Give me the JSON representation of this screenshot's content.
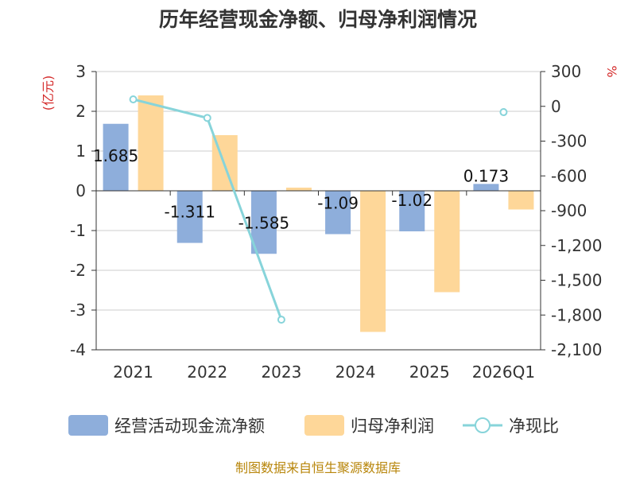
{
  "chart_data": {
    "type": "bar",
    "title": "历年经营现金净额、归母净利润情况",
    "categories": [
      "2021",
      "2022",
      "2023",
      "2024",
      "2025",
      "2026Q1"
    ],
    "series": [
      {
        "name": "经营活动现金流净额",
        "kind": "bar",
        "axis": "left",
        "color": "#8eaedb",
        "values": [
          1.685,
          -1.311,
          -1.585,
          -1.09,
          -1.02,
          0.173
        ],
        "labels": [
          "1.685",
          "-1.311",
          "-1.585",
          "-1.09",
          "-1.02",
          "0.173"
        ]
      },
      {
        "name": "归母净利润",
        "kind": "bar",
        "axis": "left",
        "color": "#fed799",
        "values": [
          2.4,
          1.4,
          0.08,
          -3.55,
          -2.55,
          -0.47
        ]
      },
      {
        "name": "净现比",
        "kind": "line",
        "axis": "right",
        "color": "#87d4da",
        "values": [
          60,
          -100,
          -1840,
          null,
          null,
          -50
        ]
      }
    ],
    "y_left": {
      "unit": "(亿元)",
      "min": -4,
      "max": 3,
      "ticks": [
        3,
        2,
        1,
        0,
        -1,
        -2,
        -3,
        -4
      ],
      "tick_labels": [
        "3",
        "2",
        "1",
        "0",
        "-1",
        "-2",
        "-3",
        "-4"
      ]
    },
    "y_right": {
      "unit": "%",
      "min": -2100,
      "max": 300,
      "ticks": [
        300,
        0,
        -300,
        -600,
        -900,
        -1200,
        -1500,
        -1800,
        -2100
      ],
      "tick_labels": [
        "300",
        "0",
        "-300",
        "-600",
        "-900",
        "-1,200",
        "-1,500",
        "-1,800",
        "-2,100"
      ]
    },
    "grid": true,
    "legend_position": "bottom"
  },
  "source": "制图数据来自恒生聚源数据库"
}
